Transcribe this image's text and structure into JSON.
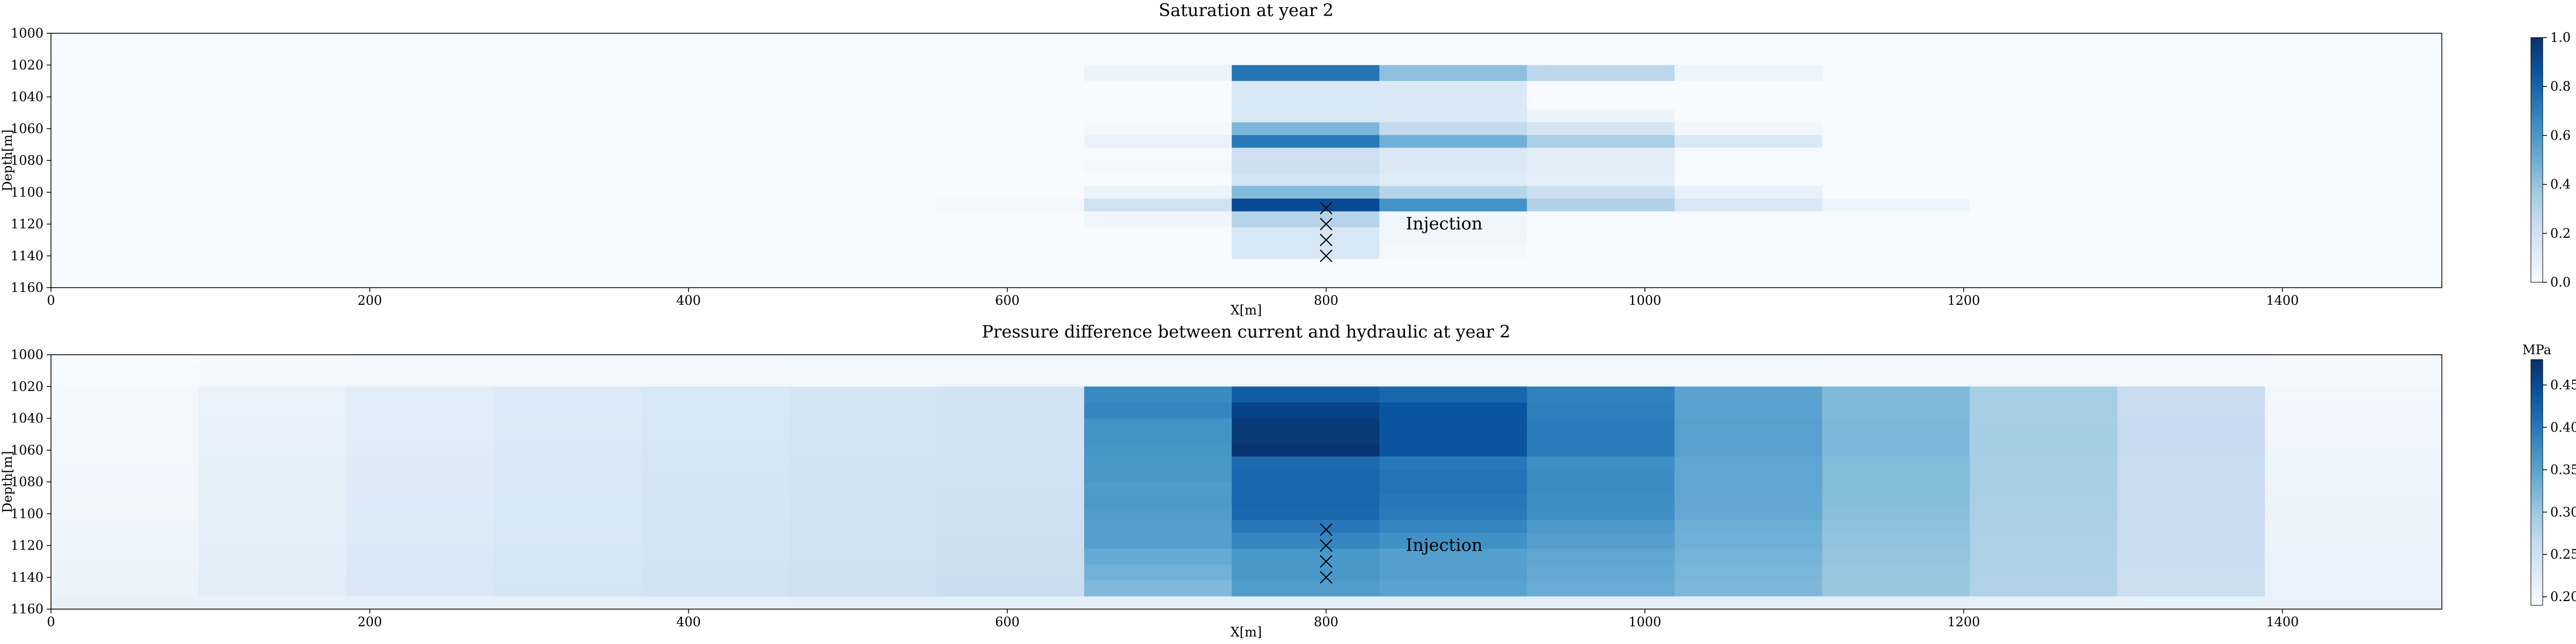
{
  "chart_data": [
    {
      "type": "heatmap",
      "title": "Saturation at year 2",
      "xlabel": "X[m]",
      "ylabel": "Depth[m]",
      "xlim": [
        0,
        1500
      ],
      "ylim": [
        1160,
        1000
      ],
      "xticks": [
        "0",
        "200",
        "400",
        "600",
        "800",
        "1000",
        "1200",
        "1400"
      ],
      "yticks": [
        "1000",
        "1020",
        "1040",
        "1060",
        "1080",
        "1100",
        "1120",
        "1140",
        "1160"
      ],
      "colormap": "Blues",
      "colorbar": {
        "min": 0.0,
        "max": 1.0,
        "ticks": [
          "0.0",
          "0.2",
          "0.4",
          "0.6",
          "0.8",
          "1.0"
        ],
        "label": ""
      },
      "x_edges": [
        0,
        92.6,
        185.2,
        277.8,
        370.4,
        463,
        555.6,
        648.2,
        740.8,
        833.4,
        926,
        1018.6,
        1111.2,
        1203.8,
        1296.4,
        1389,
        1500
      ],
      "y_edges": [
        1000,
        1020,
        1030,
        1040,
        1048,
        1056,
        1064,
        1072,
        1080,
        1088,
        1096,
        1104,
        1112,
        1122,
        1132,
        1142,
        1152,
        1160
      ],
      "values": [
        [
          0.0,
          0.0,
          0.0,
          0.0,
          0.0,
          0.0,
          0.0,
          0.0,
          0.0,
          0.0,
          0.0,
          0.0,
          0.0,
          0.0,
          0.0,
          0.0
        ],
        [
          0.0,
          0.0,
          0.0,
          0.0,
          0.0,
          0.0,
          0.0,
          0.06,
          0.74,
          0.42,
          0.28,
          0.05,
          0.0,
          0.0,
          0.0,
          0.0
        ],
        [
          0.0,
          0.0,
          0.0,
          0.0,
          0.0,
          0.0,
          0.0,
          0.0,
          0.15,
          0.14,
          0.0,
          0.0,
          0.0,
          0.0,
          0.0,
          0.0
        ],
        [
          0.0,
          0.0,
          0.0,
          0.0,
          0.0,
          0.0,
          0.0,
          0.0,
          0.15,
          0.14,
          0.0,
          0.0,
          0.0,
          0.0,
          0.0,
          0.0
        ],
        [
          0.0,
          0.0,
          0.0,
          0.0,
          0.0,
          0.0,
          0.0,
          0.0,
          0.15,
          0.14,
          0.06,
          0.0,
          0.0,
          0.0,
          0.0,
          0.0
        ],
        [
          0.0,
          0.0,
          0.0,
          0.0,
          0.0,
          0.0,
          0.0,
          0.02,
          0.46,
          0.26,
          0.17,
          0.03,
          0.0,
          0.0,
          0.0,
          0.0
        ],
        [
          0.0,
          0.0,
          0.0,
          0.0,
          0.0,
          0.0,
          0.0,
          0.07,
          0.72,
          0.49,
          0.34,
          0.15,
          0.01,
          0.0,
          0.0,
          0.0
        ],
        [
          0.0,
          0.0,
          0.0,
          0.0,
          0.0,
          0.0,
          0.0,
          0.01,
          0.21,
          0.14,
          0.1,
          0.01,
          0.0,
          0.0,
          0.0,
          0.0
        ],
        [
          0.0,
          0.0,
          0.0,
          0.0,
          0.0,
          0.0,
          0.0,
          0.02,
          0.22,
          0.14,
          0.1,
          0.01,
          0.0,
          0.0,
          0.0,
          0.0
        ],
        [
          0.0,
          0.0,
          0.0,
          0.0,
          0.0,
          0.0,
          0.0,
          0.0,
          0.18,
          0.12,
          0.09,
          0.0,
          0.0,
          0.0,
          0.0,
          0.0
        ],
        [
          0.0,
          0.0,
          0.0,
          0.0,
          0.0,
          0.0,
          0.0,
          0.06,
          0.44,
          0.3,
          0.22,
          0.08,
          0.0,
          0.0,
          0.0,
          0.0
        ],
        [
          0.0,
          0.0,
          0.0,
          0.0,
          0.0,
          0.0,
          0.02,
          0.2,
          0.9,
          0.62,
          0.32,
          0.16,
          0.05,
          0.0,
          0.0,
          0.0
        ],
        [
          0.0,
          0.0,
          0.0,
          0.0,
          0.0,
          0.0,
          0.0,
          0.04,
          0.3,
          0.04,
          0.01,
          0.0,
          0.0,
          0.0,
          0.0,
          0.0
        ],
        [
          0.0,
          0.0,
          0.0,
          0.0,
          0.0,
          0.0,
          0.0,
          0.0,
          0.16,
          0.04,
          0.0,
          0.0,
          0.0,
          0.0,
          0.0,
          0.0
        ],
        [
          0.0,
          0.0,
          0.0,
          0.0,
          0.0,
          0.0,
          0.0,
          0.0,
          0.16,
          0.02,
          0.0,
          0.0,
          0.0,
          0.0,
          0.0,
          0.0
        ],
        [
          0.0,
          0.0,
          0.0,
          0.0,
          0.0,
          0.0,
          0.0,
          0.0,
          0.0,
          0.0,
          0.0,
          0.0,
          0.0,
          0.0,
          0.0,
          0.0
        ],
        [
          0.0,
          0.0,
          0.0,
          0.0,
          0.0,
          0.0,
          0.0,
          0.0,
          0.0,
          0.0,
          0.0,
          0.0,
          0.0,
          0.0,
          0.0,
          0.0
        ]
      ],
      "markers": [
        {
          "x": 800,
          "y": 1110
        },
        {
          "x": 800,
          "y": 1120
        },
        {
          "x": 800,
          "y": 1130
        },
        {
          "x": 800,
          "y": 1140
        }
      ],
      "annotation": {
        "text": "Injection",
        "x": 850,
        "y": 1120
      }
    },
    {
      "type": "heatmap",
      "title": "Pressure difference between current and hydraulic at year 2",
      "xlabel": "X[m]",
      "ylabel": "Depth[m]",
      "xlim": [
        0,
        1500
      ],
      "ylim": [
        1160,
        1000
      ],
      "xticks": [
        "0",
        "200",
        "400",
        "600",
        "800",
        "1000",
        "1200",
        "1400"
      ],
      "yticks": [
        "1000",
        "1020",
        "1040",
        "1060",
        "1080",
        "1100",
        "1120",
        "1140",
        "1160"
      ],
      "colormap": "Blues",
      "colorbar": {
        "min": 0.19,
        "max": 0.48,
        "ticks": [
          "0.20",
          "0.25",
          "0.30",
          "0.35",
          "0.40",
          "0.45"
        ],
        "label": "MPa"
      },
      "x_edges": [
        0,
        92.6,
        185.2,
        277.8,
        370.4,
        463,
        555.6,
        648.2,
        740.8,
        833.4,
        926,
        1018.6,
        1111.2,
        1203.8,
        1296.4,
        1389,
        1500
      ],
      "y_edges": [
        1000,
        1020,
        1030,
        1040,
        1048,
        1056,
        1064,
        1072,
        1080,
        1088,
        1096,
        1104,
        1112,
        1122,
        1132,
        1142,
        1152,
        1160
      ],
      "values": [
        [
          0.193,
          0.195,
          0.197,
          0.198,
          0.199,
          0.2,
          0.2,
          0.2,
          0.2,
          0.2,
          0.2,
          0.2,
          0.199,
          0.198,
          0.197,
          0.195
        ],
        [
          0.196,
          0.21,
          0.222,
          0.228,
          0.234,
          0.24,
          0.244,
          0.38,
          0.43,
          0.42,
          0.39,
          0.35,
          0.32,
          0.29,
          0.26,
          0.2
        ],
        [
          0.197,
          0.21,
          0.222,
          0.228,
          0.234,
          0.24,
          0.245,
          0.385,
          0.46,
          0.44,
          0.392,
          0.35,
          0.32,
          0.29,
          0.26,
          0.201
        ],
        [
          0.198,
          0.212,
          0.224,
          0.23,
          0.236,
          0.242,
          0.246,
          0.37,
          0.47,
          0.44,
          0.395,
          0.352,
          0.322,
          0.292,
          0.262,
          0.202
        ],
        [
          0.198,
          0.212,
          0.224,
          0.23,
          0.236,
          0.242,
          0.246,
          0.37,
          0.47,
          0.44,
          0.395,
          0.352,
          0.322,
          0.292,
          0.262,
          0.202
        ],
        [
          0.199,
          0.213,
          0.225,
          0.231,
          0.237,
          0.243,
          0.247,
          0.368,
          0.475,
          0.44,
          0.395,
          0.352,
          0.322,
          0.292,
          0.262,
          0.203
        ],
        [
          0.2,
          0.214,
          0.226,
          0.232,
          0.238,
          0.244,
          0.248,
          0.365,
          0.415,
          0.4,
          0.375,
          0.345,
          0.318,
          0.29,
          0.261,
          0.204
        ],
        [
          0.201,
          0.215,
          0.227,
          0.233,
          0.239,
          0.245,
          0.249,
          0.365,
          0.42,
          0.405,
          0.378,
          0.345,
          0.318,
          0.29,
          0.261,
          0.205
        ],
        [
          0.201,
          0.215,
          0.227,
          0.233,
          0.239,
          0.245,
          0.249,
          0.36,
          0.42,
          0.405,
          0.378,
          0.345,
          0.318,
          0.29,
          0.261,
          0.205
        ],
        [
          0.202,
          0.216,
          0.228,
          0.234,
          0.24,
          0.246,
          0.25,
          0.362,
          0.42,
          0.4,
          0.375,
          0.343,
          0.316,
          0.289,
          0.26,
          0.206
        ],
        [
          0.202,
          0.216,
          0.228,
          0.234,
          0.24,
          0.246,
          0.25,
          0.358,
          0.418,
          0.398,
          0.373,
          0.341,
          0.314,
          0.288,
          0.259,
          0.206
        ],
        [
          0.203,
          0.217,
          0.229,
          0.235,
          0.241,
          0.247,
          0.251,
          0.355,
          0.4,
          0.385,
          0.362,
          0.335,
          0.31,
          0.285,
          0.257,
          0.207
        ],
        [
          0.204,
          0.218,
          0.23,
          0.236,
          0.242,
          0.248,
          0.252,
          0.355,
          0.385,
          0.372,
          0.355,
          0.332,
          0.308,
          0.284,
          0.256,
          0.208
        ],
        [
          0.205,
          0.219,
          0.231,
          0.237,
          0.243,
          0.249,
          0.253,
          0.34,
          0.365,
          0.355,
          0.345,
          0.328,
          0.306,
          0.283,
          0.255,
          0.209
        ],
        [
          0.206,
          0.22,
          0.232,
          0.238,
          0.244,
          0.25,
          0.254,
          0.33,
          0.365,
          0.355,
          0.342,
          0.325,
          0.304,
          0.282,
          0.254,
          0.21
        ],
        [
          0.207,
          0.221,
          0.233,
          0.239,
          0.245,
          0.251,
          0.255,
          0.32,
          0.36,
          0.35,
          0.338,
          0.322,
          0.302,
          0.281,
          0.253,
          0.211
        ],
        [
          0.21,
          0.212,
          0.214,
          0.215,
          0.216,
          0.217,
          0.218,
          0.219,
          0.22,
          0.22,
          0.219,
          0.218,
          0.217,
          0.215,
          0.213,
          0.211
        ]
      ],
      "markers": [
        {
          "x": 800,
          "y": 1110
        },
        {
          "x": 800,
          "y": 1120
        },
        {
          "x": 800,
          "y": 1130
        },
        {
          "x": 800,
          "y": 1140
        }
      ],
      "annotation": {
        "text": "Injection",
        "x": 850,
        "y": 1120
      }
    }
  ]
}
